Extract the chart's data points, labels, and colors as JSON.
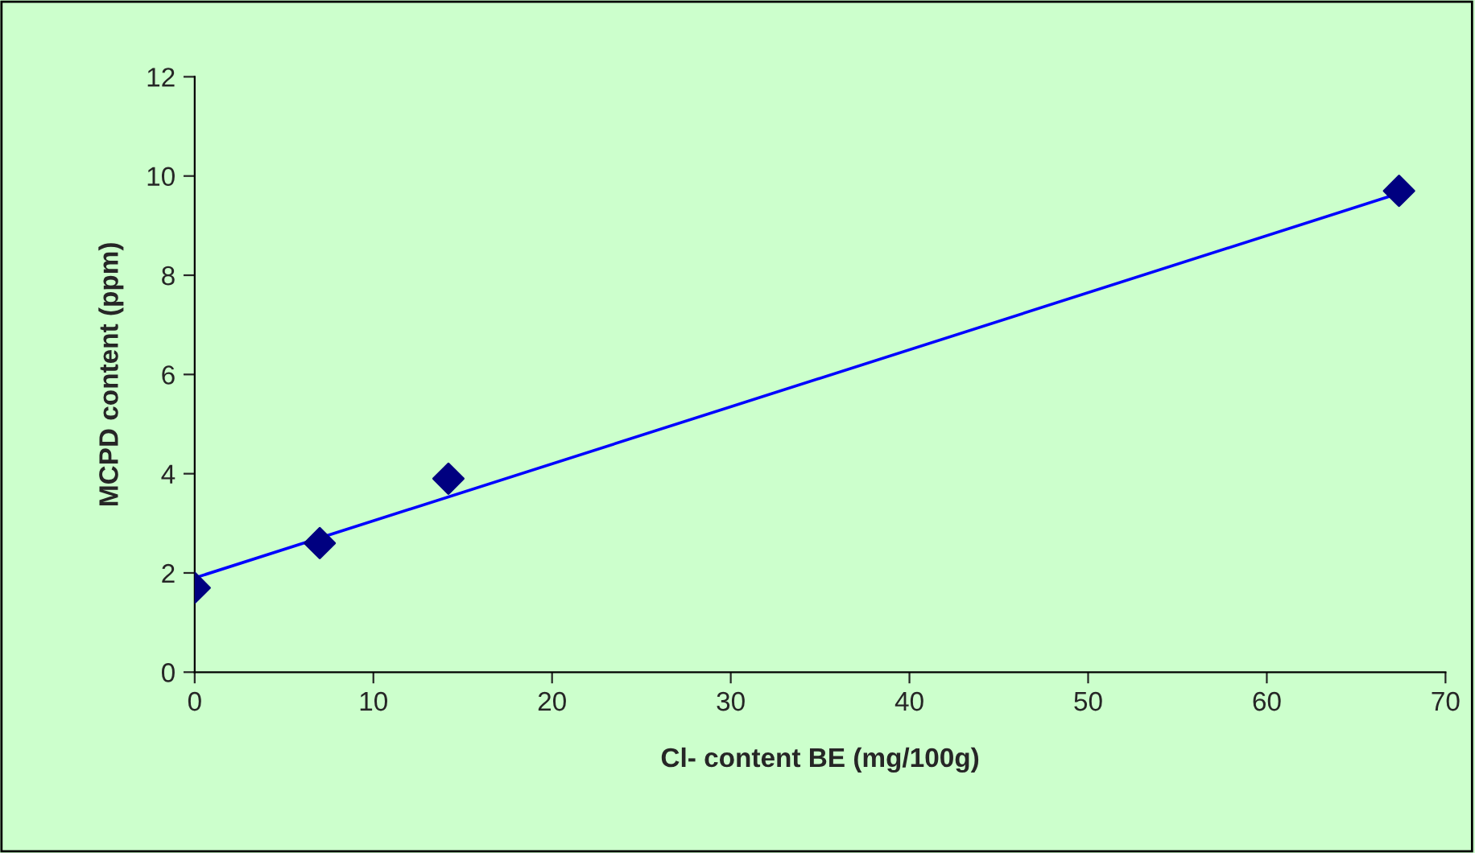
{
  "chart_data": {
    "type": "scatter",
    "xlabel": "Cl- content BE (mg/100g)",
    "ylabel": "MCPD content (ppm)",
    "series": [
      {
        "color": "#000080",
        "x": [
          0,
          7,
          14.2,
          67.4
        ],
        "values": [
          1.7,
          2.6,
          3.9,
          9.7
        ],
        "marker": "diamond"
      },
      {
        "type": "line",
        "color": "#0000ff",
        "x": [
          0,
          67.4
        ],
        "values": [
          1.9,
          9.65
        ],
        "marker": "none",
        "line_style": "solid"
      }
    ],
    "xlim": [
      0,
      70
    ],
    "xticks": [
      0,
      10,
      20,
      30,
      40,
      50,
      60,
      70
    ],
    "ylim": [
      0,
      12
    ],
    "yticks": [
      0,
      2,
      4,
      6,
      8,
      10,
      12
    ],
    "grid": false,
    "legend": false
  }
}
